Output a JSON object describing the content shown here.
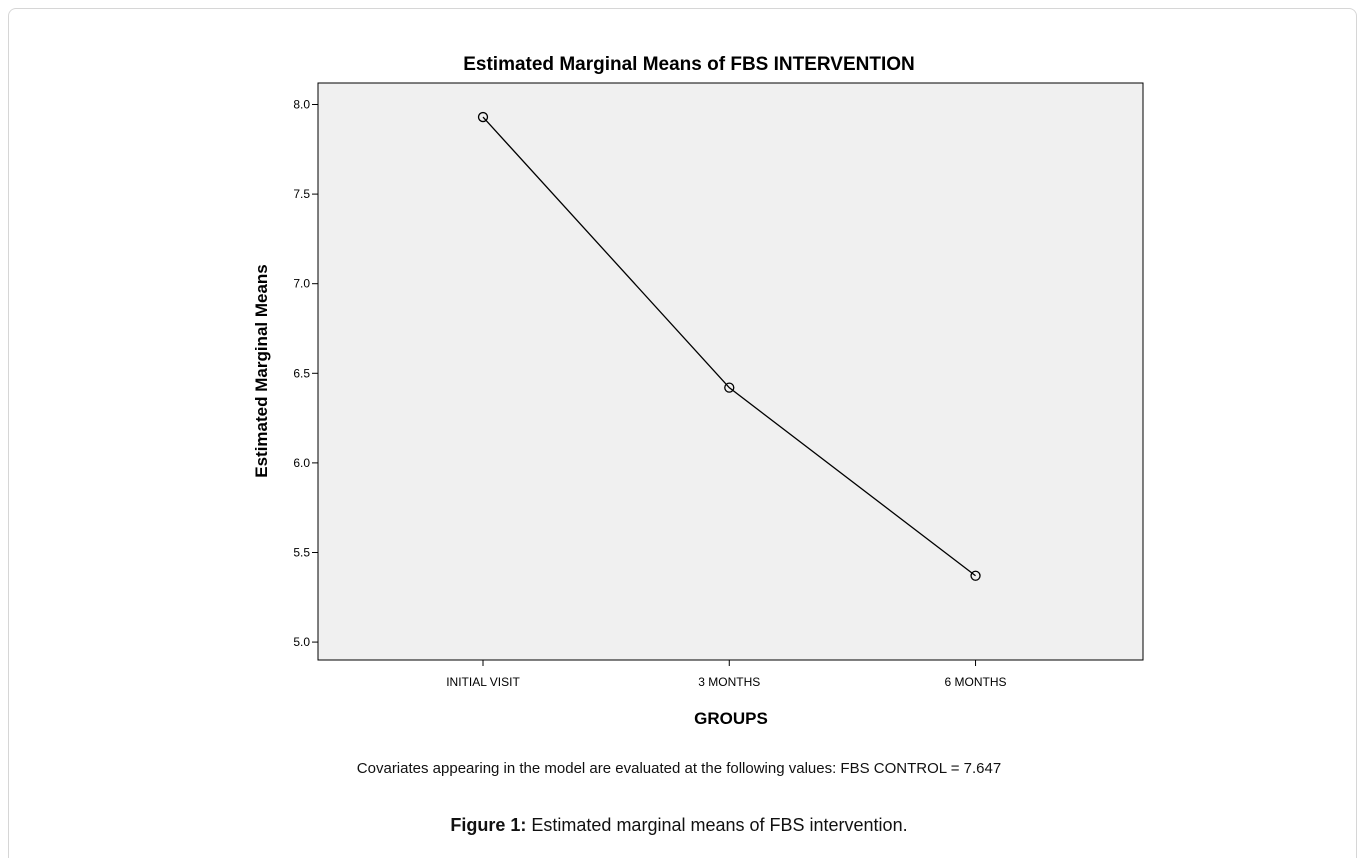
{
  "chart_data": {
    "type": "line",
    "title": "Estimated Marginal Means of FBS INTERVENTION",
    "xlabel": "GROUPS",
    "ylabel": "Estimated Marginal Means",
    "categories": [
      "INITIAL VISIT",
      "3 MONTHS",
      "6 MONTHS"
    ],
    "series": [
      {
        "values": [
          7.93,
          6.42,
          5.37
        ]
      }
    ],
    "ylim": [
      4.9,
      8.12
    ],
    "yticks": [
      5.0,
      5.5,
      6.0,
      6.5,
      7.0,
      7.5,
      8.0
    ],
    "ytick_labels": [
      "5.0",
      "5.5",
      "6.0",
      "6.5",
      "7.0",
      "7.5",
      "8.0"
    ],
    "grid": false,
    "marker": "open-circle",
    "plot_background": "#f0f0f0",
    "line_color": "#000000"
  },
  "note": "Covariates appearing in the model are evaluated at the following values: FBS CONTROL = 7.647",
  "caption": {
    "label": "Figure 1:",
    "text": " Estimated marginal means of FBS intervention."
  }
}
